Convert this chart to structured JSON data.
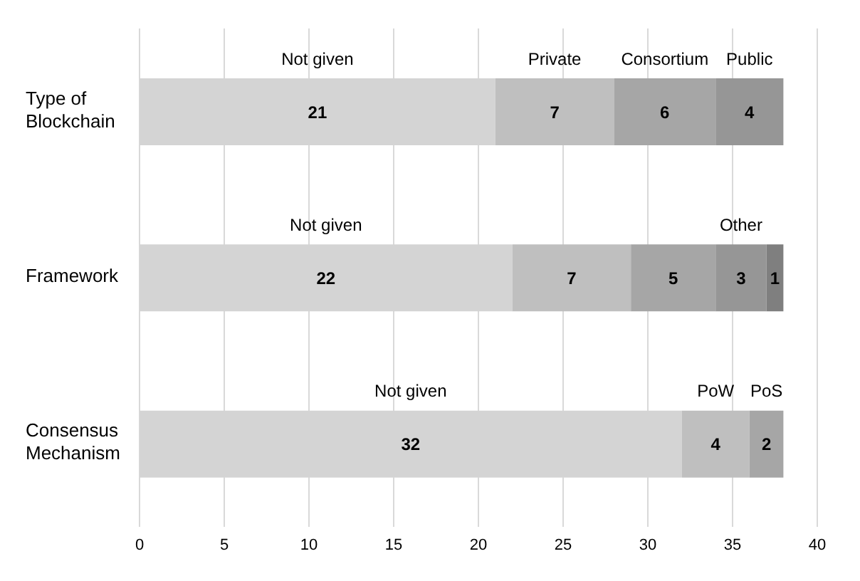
{
  "chart_data": {
    "type": "bar",
    "orientation": "horizontal",
    "stacked": true,
    "categories": [
      "Type of Blockchain",
      "Framework",
      "Consensus Mechanism"
    ],
    "series": [
      {
        "color": "#d4d4d4",
        "values": [
          21,
          22,
          32
        ]
      },
      {
        "color": "#bfbfbf",
        "values": [
          7,
          7,
          4
        ]
      },
      {
        "color": "#a6a6a6",
        "values": [
          6,
          5,
          2
        ]
      },
      {
        "color": "#969696",
        "values": [
          4,
          3,
          null
        ]
      },
      {
        "color": "#7f7f7f",
        "values": [
          null,
          1,
          null
        ]
      }
    ],
    "data_labels": true,
    "xlim": [
      0,
      40
    ],
    "xticks": [
      0,
      5,
      10,
      15,
      20,
      25,
      30,
      35,
      40
    ],
    "grid": "x",
    "legend": false,
    "annotations": [
      "Not given",
      "Private",
      "Consortium",
      "Public",
      "Not given",
      "Other",
      "Not given",
      "PoW",
      "PoS"
    ]
  }
}
